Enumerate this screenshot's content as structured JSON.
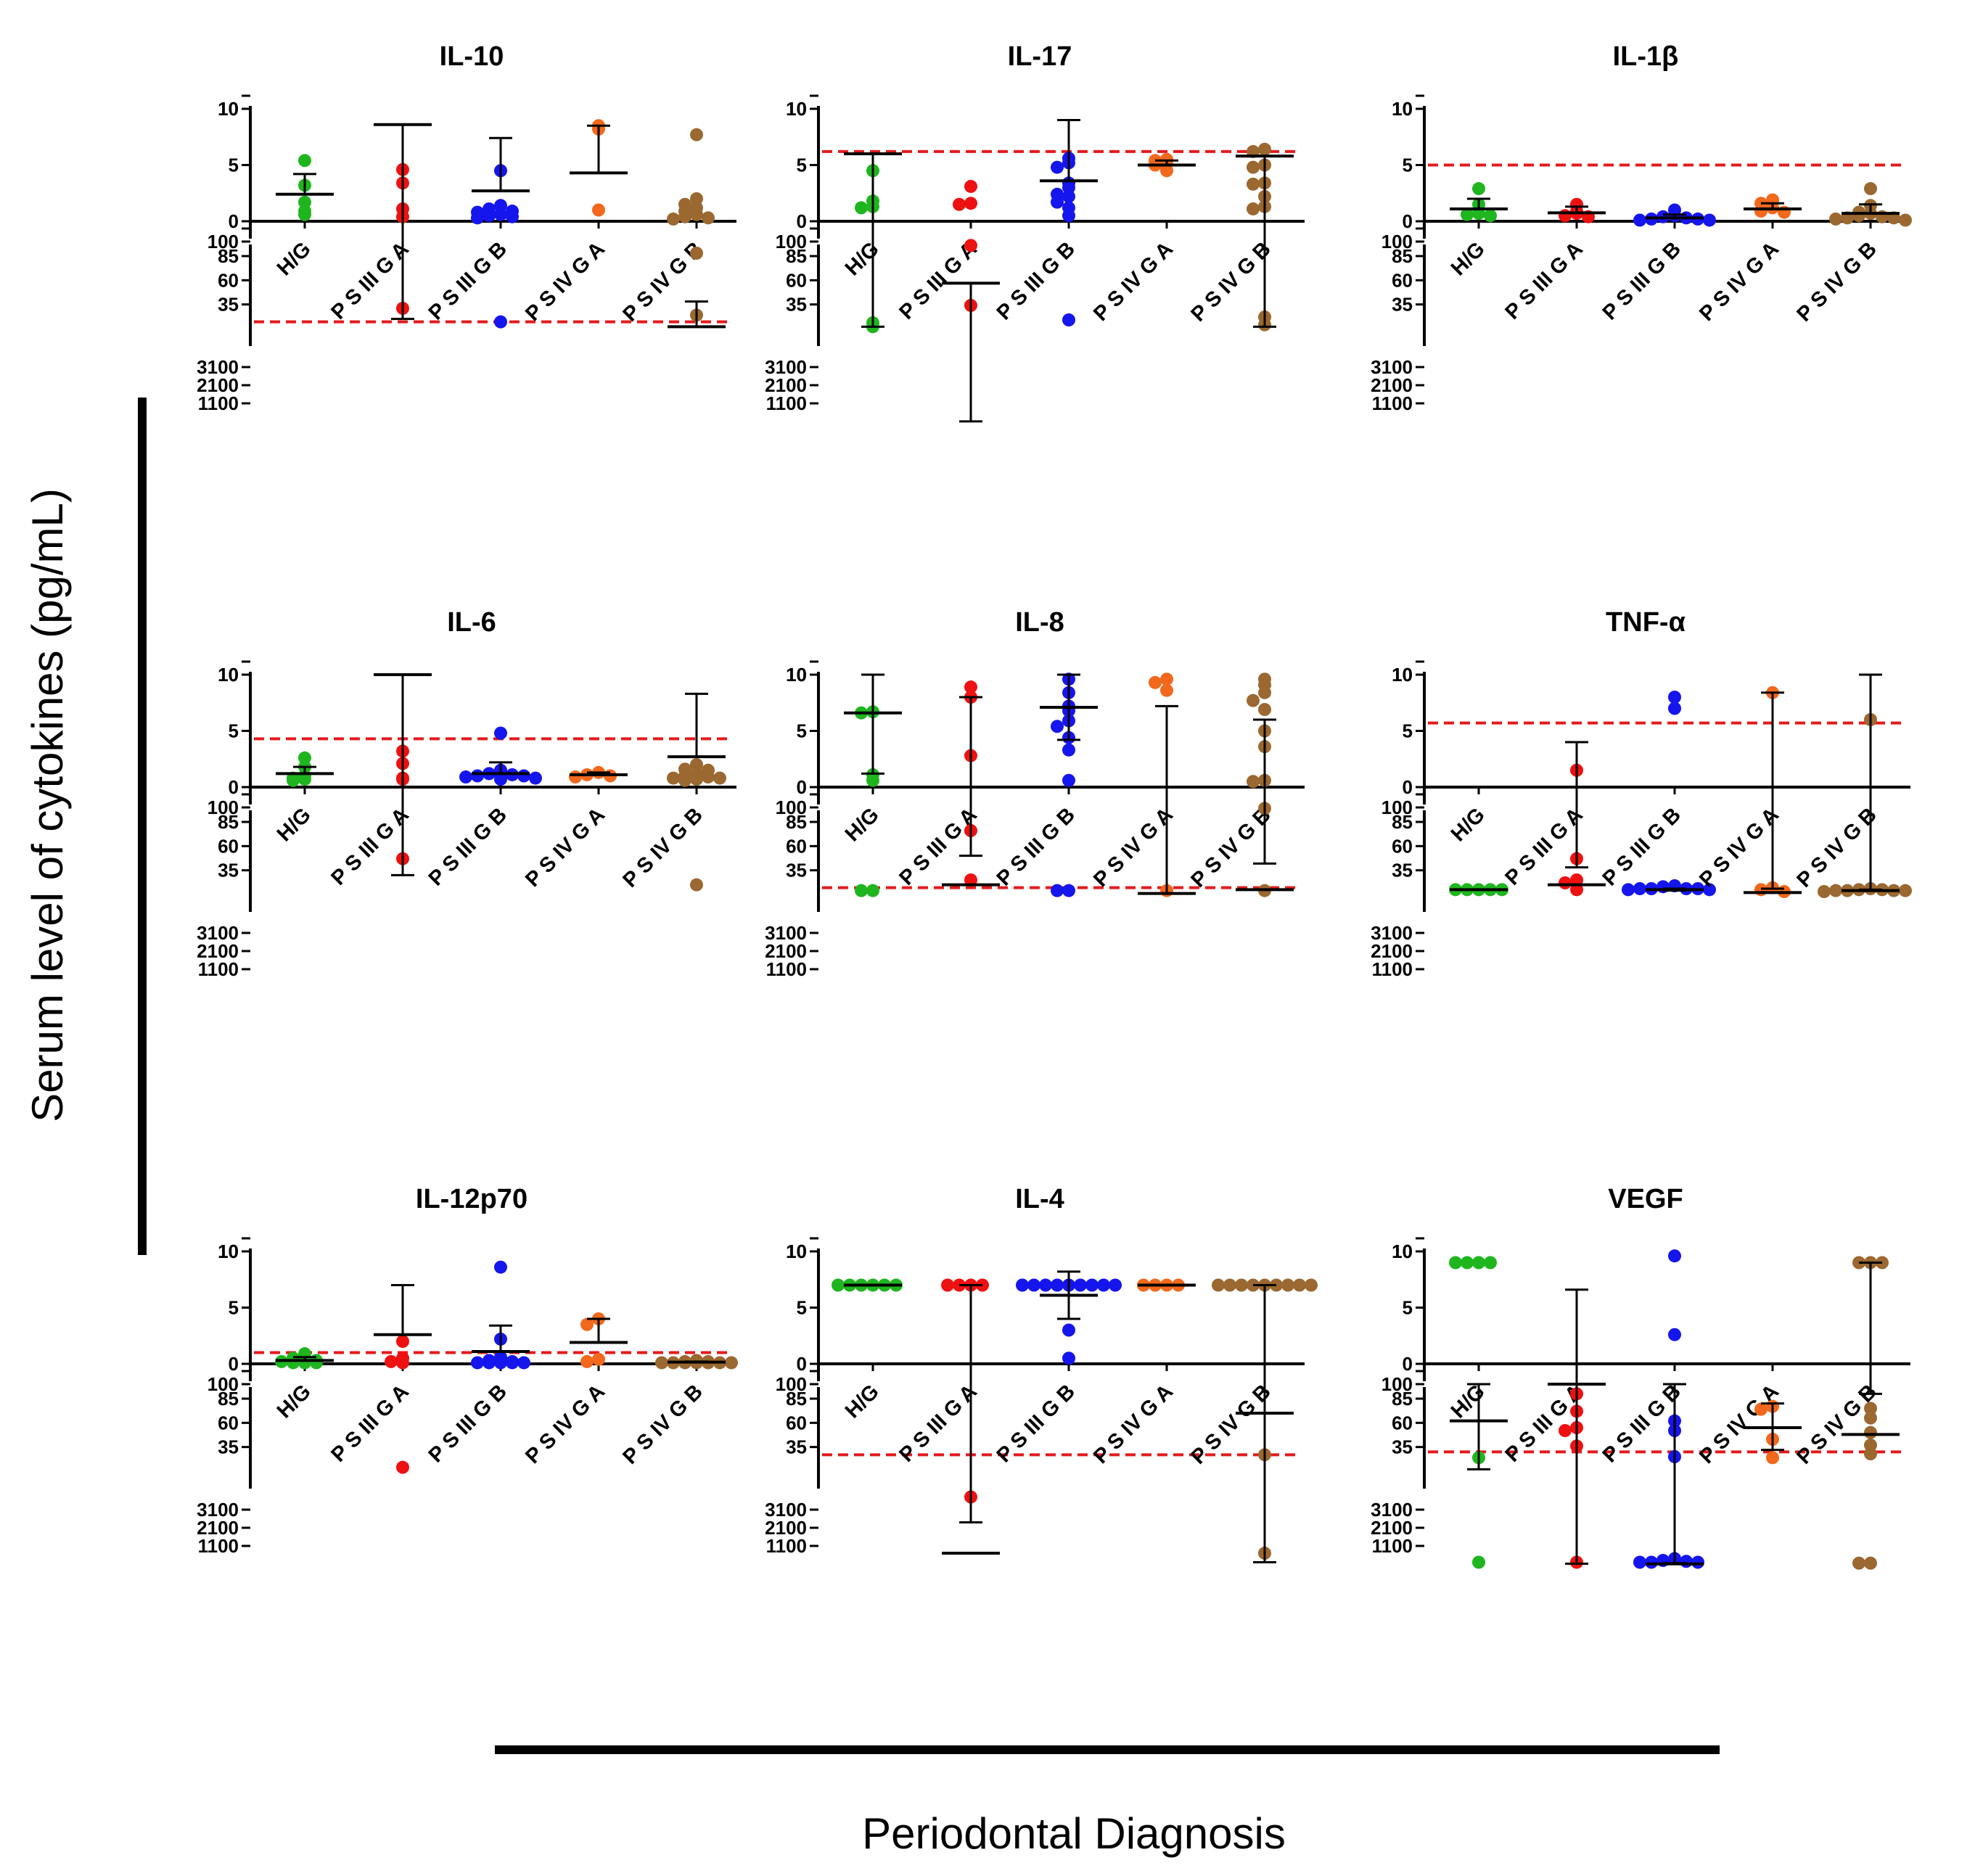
{
  "figure": {
    "ylabel": "Serum level of cytokines (pg/mL)",
    "xlabel": "Periodontal Diagnosis",
    "colors": {
      "H/G": "#1fb51f",
      "P S III G A": "#ee1111",
      "P S III G B": "#1515ee",
      "P S IV G A": "#f2681c",
      "P S IV G B": "#9a6830",
      "reference_line": "#e41a1c"
    }
  },
  "chart_data": [
    {
      "type": "scatter",
      "title": "IL-10",
      "categories": [
        "H/G",
        "P S III G A",
        "P S III G B",
        "P S IV G A",
        "P S IV G B"
      ],
      "y_segments": [
        {
          "range": [
            0,
            10
          ],
          "ticks": [
            "0",
            "5",
            "10"
          ]
        },
        {
          "range": [
            10,
            100
          ],
          "ticks": [
            "10",
            "35",
            "60",
            "85"
          ]
        },
        {
          "range": [
            100,
            4100
          ],
          "ticks": [
            "100",
            "1100",
            "2100",
            "3100"
          ]
        }
      ],
      "reference_line": 17,
      "points": [
        [
          5.4,
          3.2,
          1.7,
          0.9,
          0.6
        ],
        [
          31,
          4.6,
          3.4,
          1.1,
          0.4
        ],
        [
          17,
          4.5,
          1.4,
          1.1,
          0.9,
          0.8,
          0.6,
          0.5,
          0.4,
          0.3
        ],
        [
          8.5,
          8.2,
          1.0
        ],
        [
          88,
          24,
          7.7,
          2.0,
          1.5,
          1.2,
          0.9,
          0.6,
          0.4,
          0.3,
          0.2
        ]
      ],
      "means": [
        2.4,
        8.6,
        2.7,
        4.3,
        12
      ],
      "error_high": [
        4.2,
        20,
        7.4,
        8.5,
        38
      ]
    },
    {
      "type": "scatter",
      "title": "IL-17",
      "categories": [
        "H/G",
        "P S III G A",
        "P S III G B",
        "P S IV G A",
        "P S IV G B"
      ],
      "y_segments": [
        {
          "range": [
            0,
            10
          ],
          "ticks": [
            "0",
            "5",
            "10"
          ]
        },
        {
          "range": [
            10,
            100
          ],
          "ticks": [
            "10",
            "35",
            "60",
            "85"
          ]
        },
        {
          "range": [
            100,
            4100
          ],
          "ticks": [
            "100",
            "1100",
            "2100",
            "3100"
          ]
        }
      ],
      "reference_line": 6.2,
      "points": [
        [
          16,
          12,
          4.5,
          1.8,
          1.3,
          1.2
        ],
        [
          96,
          34,
          3.1,
          1.6,
          1.5
        ],
        [
          19,
          5.6,
          5.2,
          4.8,
          3.4,
          3.0,
          2.4,
          2.2,
          1.7,
          1.2,
          0.5
        ],
        [
          5.5,
          5.4,
          5.1,
          5.0,
          4.5
        ],
        [
          22,
          14,
          6.4,
          6.2,
          5.0,
          4.8,
          3.4,
          3.3,
          2.2,
          1.3,
          1.1
        ]
      ],
      "means": [
        6,
        57,
        3.6,
        5,
        5.8
      ],
      "error_high": [
        12,
        104,
        9,
        5.4,
        12
      ]
    },
    {
      "type": "scatter",
      "title": "IL-1β",
      "categories": [
        "H/G",
        "P S III G A",
        "P S III G B",
        "P S IV G A",
        "P S IV G B"
      ],
      "y_segments": [
        {
          "range": [
            0,
            10
          ],
          "ticks": [
            "0",
            "5",
            "10"
          ]
        },
        {
          "range": [
            10,
            100
          ],
          "ticks": [
            "10",
            "35",
            "60",
            "85"
          ]
        },
        {
          "range": [
            100,
            4100
          ],
          "ticks": [
            "100",
            "1100",
            "2100",
            "3100"
          ]
        }
      ],
      "reference_line": 5.0,
      "points": [
        [
          2.9,
          1.5,
          0.7,
          0.6,
          0.5
        ],
        [
          1.5,
          0.9,
          0.7,
          0.5,
          0.4
        ],
        [
          1.0,
          0.5,
          0.4,
          0.3,
          0.2,
          0.2,
          0.1,
          0.1
        ],
        [
          1.9,
          1.6,
          1.2,
          0.9,
          0.8
        ],
        [
          2.9,
          1.4,
          0.8,
          0.7,
          0.5,
          0.4,
          0.3,
          0.3,
          0.2,
          0.1
        ]
      ],
      "means": [
        1.1,
        0.75,
        0.3,
        1.1,
        0.7
      ],
      "error_high": [
        2.0,
        1.3,
        0.6,
        1.6,
        1.5
      ]
    },
    {
      "type": "scatter",
      "title": "IL-6",
      "categories": [
        "H/G",
        "P S III G A",
        "P S III G B",
        "P S IV G A",
        "P S IV G B"
      ],
      "y_segments": [
        {
          "range": [
            0,
            10
          ],
          "ticks": [
            "0",
            "5",
            "10"
          ]
        },
        {
          "range": [
            10,
            100
          ],
          "ticks": [
            "10",
            "35",
            "60",
            "85"
          ]
        },
        {
          "range": [
            100,
            4100
          ],
          "ticks": [
            "100",
            "1100",
            "2100",
            "3100"
          ]
        }
      ],
      "reference_line": 4.3,
      "points": [
        [
          2.6,
          1.8,
          1.0,
          0.8,
          0.7,
          0.6
        ],
        [
          47,
          3.2,
          2.1,
          0.8,
          0.7
        ],
        [
          4.8,
          1.5,
          1.3,
          1.2,
          1.1,
          1.0,
          1.0,
          0.9,
          0.8,
          0.7
        ],
        [
          1.3,
          1.1,
          1.0,
          0.9
        ],
        [
          20,
          2.0,
          1.6,
          1.5,
          1.2,
          1.0,
          0.9,
          0.8,
          0.8,
          0.7,
          0.6
        ]
      ],
      "means": [
        1.2,
        10,
        1.2,
        1.1,
        2.7
      ],
      "error_high": [
        1.8,
        30,
        2.2,
        1.3,
        8.3
      ]
    },
    {
      "type": "scatter",
      "title": "IL-8",
      "categories": [
        "H/G",
        "P S III G A",
        "P S III G B",
        "P S IV G A",
        "P S IV G B"
      ],
      "y_segments": [
        {
          "range": [
            0,
            10
          ],
          "ticks": [
            "0",
            "5",
            "10"
          ]
        },
        {
          "range": [
            10,
            100
          ],
          "ticks": [
            "10",
            "35",
            "60",
            "85"
          ]
        },
        {
          "range": [
            100,
            4100
          ],
          "ticks": [
            "100",
            "1100",
            "2100",
            "3100"
          ]
        }
      ],
      "reference_line": 17,
      "points": [
        [
          14,
          14,
          6.7,
          6.6,
          1.1,
          0.6
        ],
        [
          76,
          25,
          8.9,
          8.0,
          2.8
        ],
        [
          14,
          14,
          9.6,
          8.4,
          7.2,
          6.8,
          5.9,
          5.4,
          4.4,
          3.3,
          0.6
        ],
        [
          14,
          9.6,
          9.3,
          8.6
        ],
        [
          99,
          14,
          9.6,
          9.1,
          8.4,
          7.7,
          6.9,
          5.0,
          3.6,
          0.6,
          0.5
        ]
      ],
      "means": [
        6.6,
        20,
        7.1,
        11,
        15
      ],
      "error_high": [
        10,
        50,
        10,
        11,
        42
      ],
      "error_low": [
        1.2,
        8,
        4.2,
        7.2,
        6
      ]
    },
    {
      "type": "scatter",
      "title": "TNF-α",
      "categories": [
        "H/G",
        "P S III G A",
        "P S III G B",
        "P S IV G A",
        "P S IV G B"
      ],
      "y_segments": [
        {
          "range": [
            0,
            10
          ],
          "ticks": [
            "0",
            "5",
            "10"
          ]
        },
        {
          "range": [
            10,
            100
          ],
          "ticks": [
            "10",
            "35",
            "60",
            "85"
          ]
        },
        {
          "range": [
            100,
            4100
          ],
          "ticks": [
            "100",
            "1100",
            "2100",
            "3100"
          ]
        }
      ],
      "reference_line": 5.7,
      "points": [
        [
          15,
          15,
          15,
          15,
          15
        ],
        [
          47,
          25,
          22,
          15,
          1.5
        ],
        [
          19,
          18,
          16,
          16,
          16,
          16,
          15,
          15,
          8.0,
          7.0
        ],
        [
          17,
          15,
          13,
          8.4
        ],
        [
          16,
          15,
          15,
          14,
          14,
          14,
          14,
          13,
          6.0
        ]
      ],
      "means": [
        15,
        20,
        15,
        12,
        14
      ],
      "error_high": [
        15,
        38,
        16,
        16,
        15
      ],
      "error_low": [
        15,
        4,
        14,
        8.4,
        10
      ]
    },
    {
      "type": "scatter",
      "title": "IL-12p70",
      "categories": [
        "H/G",
        "P S III G A",
        "P S III G B",
        "P S IV G A",
        "P S IV G B"
      ],
      "y_segments": [
        {
          "range": [
            0,
            10
          ],
          "ticks": [
            "0",
            "5",
            "10"
          ]
        },
        {
          "range": [
            10,
            100
          ],
          "ticks": [
            "10",
            "35",
            "60",
            "85"
          ]
        },
        {
          "range": [
            100,
            4100
          ],
          "ticks": [
            "100",
            "1100",
            "2100",
            "3100"
          ]
        }
      ],
      "reference_line": 1.0,
      "points": [
        [
          0.9,
          0.5,
          0.3,
          0.2,
          0.1,
          0.1,
          0.1
        ],
        [
          14,
          2.0,
          0.5,
          0.2,
          0.1
        ],
        [
          8.6,
          2.2,
          0.6,
          0.3,
          0.2,
          0.1,
          0.1,
          0.1,
          0.1,
          0.1
        ],
        [
          4.0,
          3.5,
          0.4,
          0.2
        ],
        [
          0.3,
          0.2,
          0.2,
          0.1,
          0.1,
          0.1,
          0.1,
          0.1,
          0.1,
          0.1
        ]
      ],
      "means": [
        0.3,
        2.6,
        1.1,
        1.9,
        0.15
      ],
      "error_high": [
        0.6,
        7.0,
        3.4,
        4.0,
        0.2
      ]
    },
    {
      "type": "scatter",
      "title": "IL-4",
      "categories": [
        "H/G",
        "P S III G A",
        "P S III G B",
        "P S IV G A",
        "P S IV G B"
      ],
      "y_segments": [
        {
          "range": [
            0,
            10
          ],
          "ticks": [
            "0",
            "5",
            "10"
          ]
        },
        {
          "range": [
            10,
            100
          ],
          "ticks": [
            "10",
            "35",
            "60",
            "85"
          ]
        },
        {
          "range": [
            100,
            4100
          ],
          "ticks": [
            "100",
            "1100",
            "2100",
            "3100"
          ]
        }
      ],
      "reference_line": 27,
      "points": [
        [
          7.0,
          7.0,
          7.0,
          7.0,
          7.0,
          7.0
        ],
        [
          3800,
          7.0,
          7.0,
          7.0,
          7.0
        ],
        [
          7.0,
          7.0,
          7.0,
          7.0,
          7.0,
          7.0,
          7.0,
          7.0,
          7.0,
          3.0,
          0.5
        ],
        [
          7.0,
          7.0,
          7.0,
          7.0
        ],
        [
          700,
          27,
          7.0,
          7.0,
          7.0,
          7.0,
          7.0,
          7.0,
          7.0,
          7.0,
          7.0
        ]
      ],
      "means": [
        7.0,
        700,
        6.1,
        7.0,
        70
      ],
      "error_high": [
        7.0,
        2400,
        8.2,
        7.0,
        200
      ],
      "error_low": [
        7.0,
        7.0,
        4.0,
        7.0,
        7.0
      ]
    },
    {
      "type": "scatter",
      "title": "VEGF",
      "categories": [
        "H/G",
        "P S III G A",
        "P S III G B",
        "P S IV G A",
        "P S IV G B"
      ],
      "y_segments": [
        {
          "range": [
            0,
            10
          ],
          "ticks": [
            "0",
            "5",
            "10"
          ]
        },
        {
          "range": [
            10,
            100
          ],
          "ticks": [
            "10",
            "35",
            "60",
            "85"
          ]
        },
        {
          "range": [
            100,
            4100
          ],
          "ticks": [
            "100",
            "1100",
            "2100",
            "3100"
          ]
        }
      ],
      "reference_line": 30,
      "points": [
        [
          200,
          24,
          9,
          9,
          9,
          9
        ],
        [
          200,
          90,
          72,
          55,
          52,
          36
        ],
        [
          400,
          300,
          250,
          200,
          200,
          200,
          62,
          52,
          25,
          9.6,
          2.6
        ],
        [
          77,
          74,
          43,
          24
        ],
        [
          150,
          150,
          75,
          65,
          50,
          37,
          28,
          9,
          9,
          9
        ]
      ],
      "means": [
        62,
        100,
        110,
        55,
        48
      ],
      "error_high": [
        100,
        120,
        150,
        80,
        90
      ],
      "error_low": [
        12,
        6.6,
        100,
        32,
        9
      ]
    }
  ]
}
